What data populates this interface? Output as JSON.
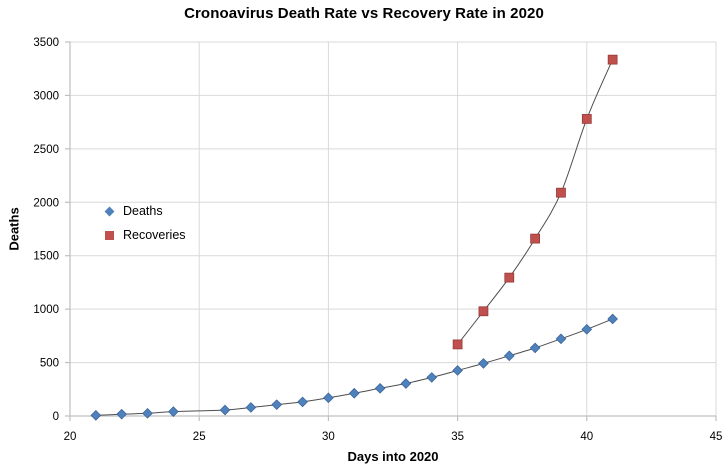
{
  "chart_data": {
    "type": "scatter",
    "title": "Cronoavirus Death Rate vs Recovery Rate in 2020",
    "xlabel": "Days into 2020",
    "ylabel": "Deaths",
    "xlim": [
      20,
      45
    ],
    "ylim": [
      0,
      3500
    ],
    "xticks": [
      20,
      25,
      30,
      35,
      40,
      45
    ],
    "yticks": [
      0,
      500,
      1000,
      1500,
      2000,
      2500,
      3000,
      3500
    ],
    "grid": true,
    "legend_position": "inside-left",
    "series": [
      {
        "name": "Deaths",
        "marker": "diamond",
        "color": "#4F81BD",
        "edge_color": "#3A6496",
        "trendline": true,
        "x": [
          21,
          22,
          23,
          24,
          26,
          27,
          28,
          29,
          30,
          31,
          32,
          33,
          34,
          35,
          36,
          37,
          38,
          39,
          40,
          41
        ],
        "y": [
          6,
          17,
          25,
          41,
          56,
          80,
          106,
          132,
          170,
          213,
          259,
          304,
          361,
          426,
          492,
          563,
          637,
          722,
          811,
          908
        ]
      },
      {
        "name": "Recoveries",
        "marker": "square",
        "color": "#C0504D",
        "edge_color": "#953735",
        "trendline": true,
        "x": [
          35,
          36,
          37,
          38,
          39,
          40,
          41
        ],
        "y": [
          670,
          980,
          1295,
          1660,
          2090,
          2780,
          3335
        ]
      }
    ],
    "colors": {
      "gridline": "#D9D9D9",
      "axis": "#BFBFBF",
      "trendline": "#4D4D4D",
      "text": "#000000",
      "background": "#FFFFFF"
    }
  }
}
